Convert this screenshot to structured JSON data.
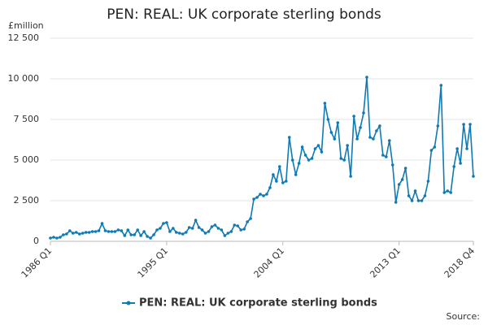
{
  "chart_data": {
    "type": "line",
    "title": "PEN: REAL: UK corporate sterling bonds",
    "y_axis_label": "£million",
    "source": "Source:",
    "categories": [
      "1986 Q1",
      null,
      null,
      null,
      null,
      null,
      null,
      null,
      null,
      null,
      null,
      null,
      null,
      null,
      null,
      null,
      null,
      null,
      null,
      null,
      null,
      null,
      null,
      null,
      null,
      null,
      null,
      null,
      null,
      null,
      null,
      null,
      null,
      null,
      null,
      null,
      "1995 Q1",
      null,
      null,
      null,
      null,
      null,
      null,
      null,
      null,
      null,
      null,
      null,
      null,
      null,
      null,
      null,
      null,
      null,
      null,
      null,
      null,
      null,
      null,
      null,
      null,
      null,
      null,
      null,
      null,
      null,
      null,
      null,
      null,
      null,
      null,
      null,
      "2004 Q1",
      null,
      null,
      null,
      null,
      null,
      null,
      null,
      null,
      null,
      null,
      null,
      null,
      null,
      null,
      null,
      null,
      null,
      null,
      null,
      null,
      null,
      null,
      null,
      null,
      null,
      null,
      null,
      null,
      null,
      null,
      null,
      null,
      null,
      null,
      null,
      "2013 Q1",
      null,
      null,
      null,
      null,
      null,
      null,
      null,
      null,
      null,
      null,
      null,
      null,
      null,
      null,
      null,
      null,
      null,
      null,
      null,
      null,
      null,
      null,
      "2018 Q4"
    ],
    "series": [
      {
        "name": "PEN: REAL: UK corporate sterling bonds",
        "color": "#0f7ab4",
        "values": [
          200,
          250,
          200,
          250,
          400,
          450,
          650,
          500,
          550,
          450,
          500,
          550,
          550,
          600,
          600,
          650,
          1100,
          650,
          600,
          600,
          600,
          700,
          650,
          350,
          700,
          400,
          400,
          700,
          350,
          600,
          300,
          200,
          400,
          700,
          800,
          1100,
          1150,
          600,
          800,
          550,
          500,
          450,
          550,
          850,
          800,
          1300,
          850,
          700,
          500,
          600,
          900,
          1000,
          800,
          700,
          350,
          500,
          600,
          1000,
          950,
          700,
          750,
          1200,
          1400,
          2600,
          2700,
          2900,
          2800,
          2900,
          3300,
          4100,
          3700,
          4600,
          3600,
          3700,
          6400,
          5000,
          4100,
          4800,
          5800,
          5300,
          5000,
          5100,
          5700,
          5900,
          5500,
          8500,
          7500,
          6700,
          6300,
          7300,
          5100,
          5000,
          5900,
          4000,
          7700,
          6300,
          7000,
          7900,
          10100,
          6400,
          6300,
          6800,
          7100,
          5300,
          5200,
          6200,
          4700,
          2400,
          3500,
          3800,
          4500,
          2800,
          2500,
          3100,
          2500,
          2500,
          2800,
          3700,
          5600,
          5800,
          7100,
          9600,
          3000,
          3100,
          3000,
          4600,
          5700,
          4800,
          7200,
          5700,
          7200,
          4000
        ]
      }
    ],
    "ylim": [
      0,
      12500
    ],
    "yticks": [
      0,
      {
        "value": 2500,
        "label": "2 500"
      },
      {
        "value": 5000,
        "label": "5 000"
      },
      {
        "value": 7500,
        "label": "7 500"
      },
      {
        "value": 10000,
        "label": "10 000"
      },
      {
        "value": 12500,
        "label": "12 500"
      }
    ],
    "grid": true,
    "legend": "bottom"
  }
}
